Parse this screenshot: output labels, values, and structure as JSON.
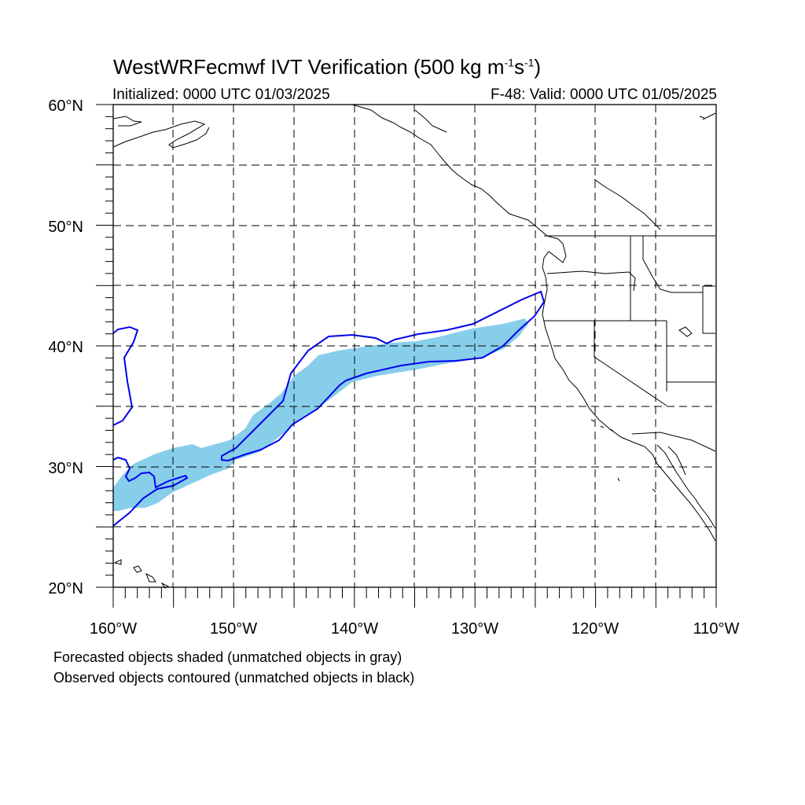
{
  "title": {
    "text": "WestWRFecmwf IVT Verification (500 kg m",
    "sup1": "-1",
    "mid": "s",
    "sup2": "-1",
    "close": ")"
  },
  "initialized": "Initialized: 0000 UTC 01/03/2025",
  "valid": "F-48: Valid: 0000 UTC 01/05/2025",
  "axes": {
    "lon_labels": [
      "160°W",
      "150°W",
      "140°W",
      "130°W",
      "120°W",
      "110°W"
    ],
    "lat_labels": [
      "20°N",
      "30°N",
      "40°N",
      "50°N",
      "60°N"
    ],
    "lon_range": [
      -160,
      -110
    ],
    "lat_range": [
      20,
      60
    ]
  },
  "legend_notes": [
    "Forecasted objects shaded (unmatched objects in gray)",
    "Observed objects contoured (unmatched objects in black)"
  ],
  "colors": {
    "forecast_fill": "#87CEEB",
    "observed_contour": "#0000EE",
    "coastline": "#000000",
    "grid": "#000000"
  }
}
